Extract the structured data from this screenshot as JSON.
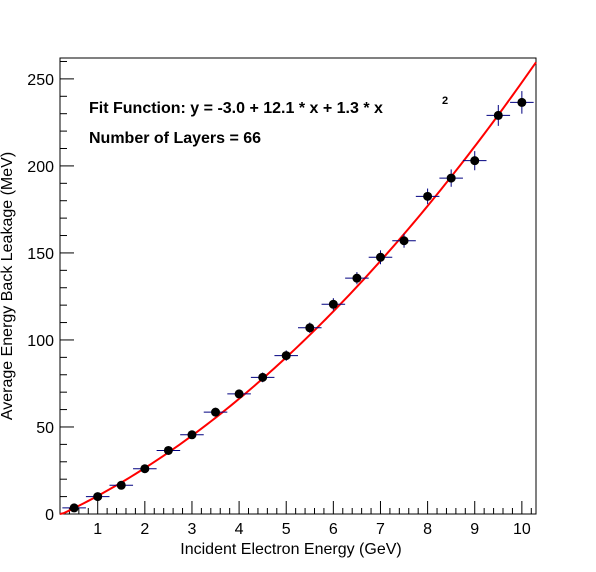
{
  "chart_data": {
    "type": "scatter",
    "title": "",
    "xlabel": "Incident Electron Energy (GeV)",
    "ylabel": "Average Energy Back Leakage (MeV)",
    "xlim": [
      0.2,
      10.3
    ],
    "ylim": [
      0,
      262
    ],
    "x_ticks": [
      1,
      2,
      3,
      4,
      5,
      6,
      7,
      8,
      9,
      10
    ],
    "y_ticks": [
      0,
      50,
      100,
      150,
      200,
      250
    ],
    "grid": false,
    "legend": "none",
    "annotations": {
      "fit_prefix": "Fit Function: y = -3.0 + 12.1 * x +  1.3 * x",
      "fit_exponent": "2",
      "layers": "Number of Layers = 66"
    },
    "fit": {
      "c0": -3.0,
      "c1": 12.1,
      "c2": 1.3,
      "x_range": [
        0.2,
        10.3
      ],
      "color": "#ff0000"
    },
    "marker_color": "#000000",
    "error_bar_color": "#000080",
    "points": [
      {
        "x": 0.5,
        "y": 3.5,
        "xerr": 0.25,
        "yerr": 1.5
      },
      {
        "x": 1.0,
        "y": 10.0,
        "xerr": 0.25,
        "yerr": 1.5
      },
      {
        "x": 1.5,
        "y": 16.5,
        "xerr": 0.25,
        "yerr": 1.8
      },
      {
        "x": 2.0,
        "y": 26.0,
        "xerr": 0.25,
        "yerr": 2.0
      },
      {
        "x": 2.5,
        "y": 36.5,
        "xerr": 0.25,
        "yerr": 2.0
      },
      {
        "x": 3.0,
        "y": 45.5,
        "xerr": 0.25,
        "yerr": 2.3
      },
      {
        "x": 3.5,
        "y": 58.5,
        "xerr": 0.25,
        "yerr": 2.5
      },
      {
        "x": 4.0,
        "y": 69.0,
        "xerr": 0.25,
        "yerr": 2.5
      },
      {
        "x": 4.5,
        "y": 78.5,
        "xerr": 0.25,
        "yerr": 2.8
      },
      {
        "x": 5.0,
        "y": 91.0,
        "xerr": 0.25,
        "yerr": 3.0
      },
      {
        "x": 5.5,
        "y": 107.0,
        "xerr": 0.25,
        "yerr": 3.0
      },
      {
        "x": 6.0,
        "y": 120.5,
        "xerr": 0.25,
        "yerr": 3.5
      },
      {
        "x": 6.5,
        "y": 135.5,
        "xerr": 0.25,
        "yerr": 3.5
      },
      {
        "x": 7.0,
        "y": 147.5,
        "xerr": 0.25,
        "yerr": 4.0
      },
      {
        "x": 7.5,
        "y": 157.0,
        "xerr": 0.25,
        "yerr": 4.0
      },
      {
        "x": 8.0,
        "y": 182.5,
        "xerr": 0.25,
        "yerr": 4.5
      },
      {
        "x": 8.5,
        "y": 193.0,
        "xerr": 0.25,
        "yerr": 5.0
      },
      {
        "x": 9.0,
        "y": 203.0,
        "xerr": 0.25,
        "yerr": 5.5
      },
      {
        "x": 9.5,
        "y": 229.0,
        "xerr": 0.25,
        "yerr": 6.0
      },
      {
        "x": 10.0,
        "y": 236.5,
        "xerr": 0.25,
        "yerr": 6.5
      }
    ]
  }
}
